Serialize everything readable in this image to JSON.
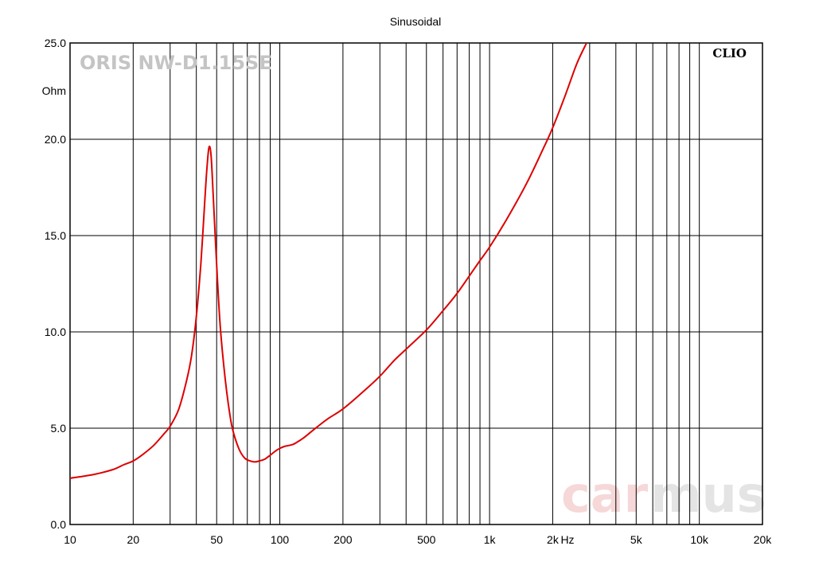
{
  "chart_data": {
    "type": "line",
    "title": "Sinusoidal",
    "model_label": "ORIS NW-D1.15SE",
    "brand_label": "CLIO",
    "watermark": {
      "part1": "car",
      "part2": "mus"
    },
    "x_scale": "log",
    "xlim": [
      10,
      20000
    ],
    "ylim": [
      0,
      25
    ],
    "grid": true,
    "y_unit": "Ohm",
    "x_unit": "Hz",
    "x_ticks": [
      {
        "value": 10,
        "label": "10"
      },
      {
        "value": 20,
        "label": "20"
      },
      {
        "value": 50,
        "label": "50"
      },
      {
        "value": 100,
        "label": "100"
      },
      {
        "value": 200,
        "label": "200"
      },
      {
        "value": 500,
        "label": "500"
      },
      {
        "value": 1000,
        "label": "1k"
      },
      {
        "value": 2000,
        "label": "2k"
      },
      {
        "value": 5000,
        "label": "5k"
      },
      {
        "value": 10000,
        "label": "10k"
      },
      {
        "value": 20000,
        "label": "20k"
      }
    ],
    "y_ticks": [
      {
        "value": 0,
        "label": "0.0"
      },
      {
        "value": 5,
        "label": "5.0"
      },
      {
        "value": 10,
        "label": "10.0"
      },
      {
        "value": 15,
        "label": "15.0"
      },
      {
        "value": 20,
        "label": "20.0"
      },
      {
        "value": 25,
        "label": "25.0"
      }
    ],
    "colors": {
      "curve": "#dd0000",
      "grid": "#000000",
      "watermark_car": "#f6d8d8",
      "watermark_mus": "#e4e4e4"
    },
    "series": [
      {
        "x": [
          10,
          13,
          16,
          18,
          20,
          22,
          25,
          28,
          30,
          33,
          36,
          38,
          40,
          42,
          44,
          45,
          46,
          47,
          48,
          50,
          52,
          55,
          58,
          60,
          64,
          68,
          72,
          76,
          80,
          85,
          90,
          95,
          100,
          105,
          110,
          115,
          120,
          130,
          150,
          170,
          200,
          250,
          300,
          350,
          400,
          500,
          600,
          700,
          800,
          900,
          1000,
          1200,
          1500,
          1800,
          2000,
          2300,
          2600,
          2900
        ],
        "y": [
          2.4,
          2.6,
          2.85,
          3.1,
          3.3,
          3.6,
          4.1,
          4.7,
          5.1,
          6.0,
          7.5,
          8.8,
          10.8,
          13.5,
          17.0,
          18.6,
          19.6,
          19.2,
          17.4,
          13.5,
          10.3,
          7.5,
          5.6,
          4.8,
          3.9,
          3.45,
          3.3,
          3.25,
          3.3,
          3.4,
          3.6,
          3.8,
          3.95,
          4.05,
          4.1,
          4.15,
          4.25,
          4.5,
          5.05,
          5.5,
          6.0,
          6.9,
          7.7,
          8.5,
          9.1,
          10.1,
          11.1,
          12.0,
          12.9,
          13.7,
          14.4,
          15.8,
          17.7,
          19.5,
          20.6,
          22.3,
          23.9,
          25.0
        ]
      }
    ]
  }
}
